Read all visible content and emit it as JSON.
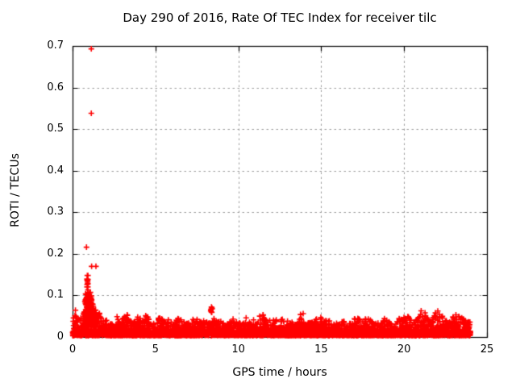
{
  "window": {
    "background": "#ffffff"
  },
  "chart_data": {
    "type": "scatter",
    "title": "Day 290 of 2016, Rate Of TEC Index for receiver tilc",
    "xlabel": "GPS time / hours",
    "ylabel": "ROTI / TECUs",
    "xlim": [
      0,
      25
    ],
    "ylim": [
      0,
      0.7
    ],
    "x_ticks": [
      0,
      5,
      10,
      15,
      20,
      25
    ],
    "x_tick_labels": [
      "0",
      "5",
      "10",
      "15",
      "20",
      "25"
    ],
    "y_ticks": [
      0,
      0.1,
      0.2,
      0.3,
      0.4,
      0.5,
      0.6,
      0.7
    ],
    "y_tick_labels": [
      "0",
      "0.1",
      "0.2",
      "0.3",
      "0.4",
      "0.5",
      "0.6",
      "0.7"
    ],
    "grid": true,
    "grid_style": "dashed",
    "legend_position": "none",
    "marker_shape": "plus",
    "marker_size_px": 7,
    "marker_stroke_px": 1.6,
    "marker_color": "#ff0000",
    "grid_color": "#9a9a9a",
    "frame_color": "#000000",
    "text_color": "#000000",
    "data_time_range_hours": [
      0,
      24
    ],
    "points_count": 2880,
    "extra_points_count": 1300,
    "noise_seed": 42,
    "band_floor": 0.003,
    "band_envelope_step_hours": 0.5,
    "band_envelope_max": [
      0.06,
      0.055,
      0.11,
      0.065,
      0.042,
      0.04,
      0.048,
      0.045,
      0.052,
      0.048,
      0.04,
      0.045,
      0.05,
      0.04,
      0.042,
      0.038,
      0.04,
      0.042,
      0.036,
      0.038,
      0.04,
      0.042,
      0.04,
      0.048,
      0.045,
      0.042,
      0.04,
      0.045,
      0.05,
      0.042,
      0.04,
      0.038,
      0.036,
      0.04,
      0.044,
      0.042,
      0.038,
      0.04,
      0.036,
      0.038,
      0.04,
      0.042,
      0.052,
      0.055,
      0.05,
      0.048,
      0.052,
      0.045,
      0.04
    ],
    "outliers": [
      [
        1.13,
        0.693
      ],
      [
        1.13,
        0.538
      ],
      [
        0.84,
        0.216
      ],
      [
        1.15,
        0.17
      ],
      [
        1.41,
        0.17
      ],
      [
        0.89,
        0.148
      ],
      [
        0.93,
        0.128
      ],
      [
        8.35,
        0.066
      ],
      [
        8.38,
        0.072
      ],
      [
        8.42,
        0.068
      ]
    ],
    "clusters": [
      {
        "x": 0.88,
        "x_spread": 0.05,
        "y_min": 0.045,
        "y_max": 0.15,
        "count": 45
      },
      {
        "x": 0.97,
        "x_spread": 0.22,
        "y_min": 0.03,
        "y_max": 0.105,
        "count": 130
      },
      {
        "x": 1.25,
        "x_spread": 0.18,
        "y_min": 0.025,
        "y_max": 0.065,
        "count": 70
      },
      {
        "x": 8.38,
        "x_spread": 0.05,
        "y_min": 0.058,
        "y_max": 0.075,
        "count": 9
      }
    ]
  }
}
